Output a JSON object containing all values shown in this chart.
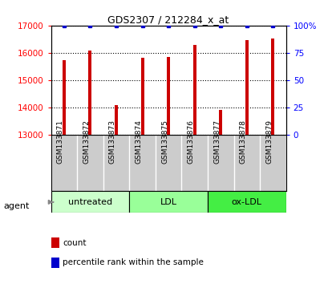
{
  "title": "GDS2307 / 212284_x_at",
  "samples": [
    "GSM133871",
    "GSM133872",
    "GSM133873",
    "GSM133874",
    "GSM133875",
    "GSM133876",
    "GSM133877",
    "GSM133878",
    "GSM133879"
  ],
  "counts": [
    15720,
    16100,
    14100,
    15820,
    15850,
    16280,
    13900,
    16480,
    16530
  ],
  "percentile_ranks": [
    100,
    100,
    100,
    100,
    100,
    100,
    100,
    100,
    100
  ],
  "bar_color": "#cc0000",
  "dot_color": "#0000cc",
  "ylim_left": [
    13000,
    17000
  ],
  "ylim_right": [
    0,
    100
  ],
  "yticks_left": [
    13000,
    14000,
    15000,
    16000,
    17000
  ],
  "yticks_right": [
    0,
    25,
    50,
    75,
    100
  ],
  "groups": [
    {
      "label": "untreated",
      "indices": [
        0,
        1,
        2
      ],
      "color": "#ccffcc"
    },
    {
      "label": "LDL",
      "indices": [
        3,
        4,
        5
      ],
      "color": "#99ff99"
    },
    {
      "label": "ox-LDL",
      "indices": [
        6,
        7,
        8
      ],
      "color": "#44ee44"
    }
  ],
  "agent_label": "agent",
  "legend_count_color": "#cc0000",
  "legend_pct_color": "#0000cc",
  "bar_width": 0.12,
  "label_bg": "#cccccc",
  "label_border": "#ffffff",
  "background_color": "#ffffff"
}
